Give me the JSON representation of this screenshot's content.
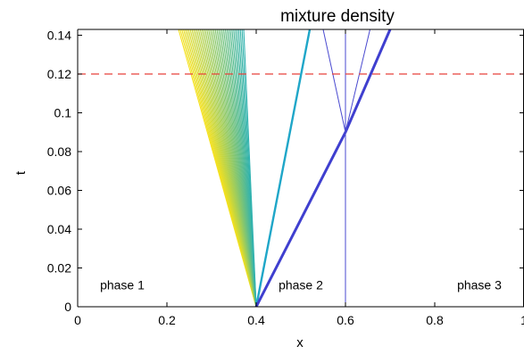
{
  "chart_data": {
    "type": "line",
    "title": "mixture density",
    "xlabel": "x",
    "ylabel": "t",
    "xlim": [
      0,
      1
    ],
    "ylim": [
      0,
      0.143
    ],
    "x_ticks": [
      "0",
      "0.2",
      "0.4",
      "0.6",
      "0.8",
      "1"
    ],
    "y_ticks": [
      "0",
      "0.02",
      "0.04",
      "0.06",
      "0.08",
      "0.1",
      "0.12",
      "0.14"
    ],
    "grid": false,
    "annotations": [
      {
        "text": "phase 1",
        "x": 0.1,
        "y": 0.009
      },
      {
        "text": "phase 2",
        "x": 0.5,
        "y": 0.009
      },
      {
        "text": "phase 3",
        "x": 0.9,
        "y": 0.009
      }
    ],
    "reference_line": {
      "y": 0.12,
      "style": "dashed",
      "color": "#e8423a"
    },
    "rarefaction_fan": {
      "origin": [
        0.4,
        0.0
      ],
      "top_x_range": [
        0.226,
        0.372
      ],
      "count": 40,
      "color_start": "#f5e11b",
      "color_end": "#2fb2b0"
    },
    "lines": [
      {
        "name": "fan-edge",
        "points": [
          [
            0.4,
            0.0
          ],
          [
            0.52,
            0.143
          ]
        ],
        "color": "#1fa6c8",
        "width": 2.4
      },
      {
        "name": "shock",
        "points": [
          [
            0.4,
            0.0
          ],
          [
            0.6,
            0.09
          ],
          [
            0.7,
            0.143
          ]
        ],
        "color": "#3f3fcf",
        "width": 3.0
      },
      {
        "name": "contact",
        "points": [
          [
            0.6,
            0.0
          ],
          [
            0.6,
            0.143
          ]
        ],
        "color": "#4a4ad0",
        "width": 1.0
      },
      {
        "name": "wave-left",
        "points": [
          [
            0.6,
            0.09
          ],
          [
            0.55,
            0.143
          ]
        ],
        "color": "#4a4ad0",
        "width": 1.0
      },
      {
        "name": "wave-right",
        "points": [
          [
            0.6,
            0.09
          ],
          [
            0.655,
            0.143
          ]
        ],
        "color": "#4a4ad0",
        "width": 1.0
      }
    ]
  }
}
